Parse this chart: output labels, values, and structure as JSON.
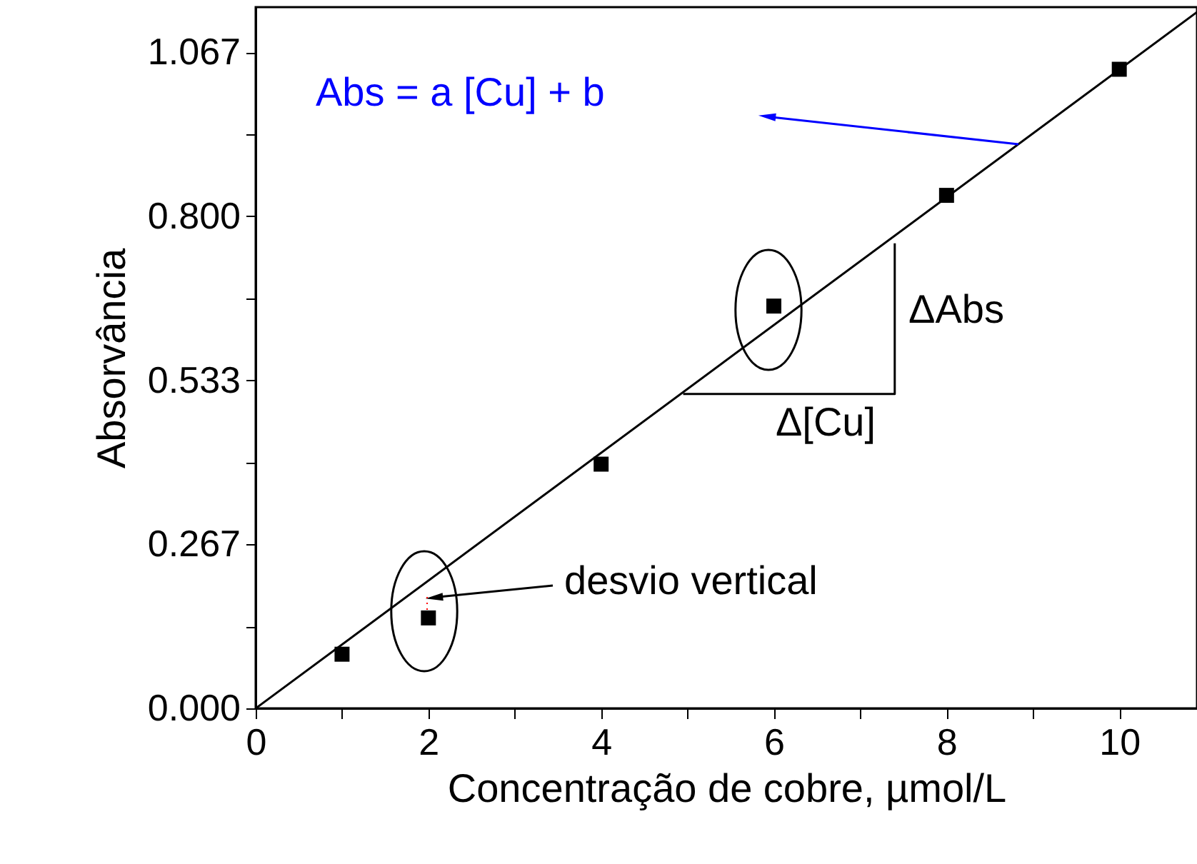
{
  "chart_data": {
    "type": "scatter",
    "xlabel": "Concentração de cobre, µmol/L",
    "ylabel": "Absorvância",
    "xlim": [
      0,
      10.9
    ],
    "ylim": [
      0,
      1.14
    ],
    "xticks": [
      0,
      {
        "value": 1,
        "label": null
      },
      2,
      {
        "value": 3,
        "label": null
      },
      4,
      {
        "value": 5,
        "label": null
      },
      6,
      {
        "value": 7,
        "label": null
      },
      8,
      {
        "value": 9,
        "label": null
      },
      10
    ],
    "yticks": [
      {
        "value": 0,
        "label": "0.000"
      },
      {
        "value": 0.1333,
        "label": null
      },
      {
        "value": 0.2667,
        "label": "0.267"
      },
      {
        "value": 0.4,
        "label": null
      },
      {
        "value": 0.5333,
        "label": "0.533"
      },
      {
        "value": 0.6667,
        "label": null
      },
      {
        "value": 0.8,
        "label": "0.800"
      },
      {
        "value": 0.9333,
        "label": null
      },
      {
        "value": 1.0667,
        "label": "1.067"
      }
    ],
    "grid": false,
    "marker": "square",
    "series": [
      {
        "color": "#000000",
        "x": [
          1,
          2,
          4,
          6,
          8,
          10
        ],
        "values": [
          0.088,
          0.147,
          0.397,
          0.654,
          0.834,
          1.039
        ]
      },
      {
        "type": "line",
        "color": "#000000",
        "line_style": "solid",
        "marker": "none",
        "x": [
          0,
          10.9
        ],
        "values": [
          0,
          1.132
        ]
      },
      {
        "type": "line",
        "color": "#000000",
        "line_style": "solid",
        "marker": "none",
        "x": [
          4.95,
          7.4,
          7.4
        ],
        "values": [
          0.511,
          0.511,
          0.756
        ]
      }
    ],
    "annotations": [
      "Abs = a [Cu] + b",
      "ΔAbs",
      "Δ[Cu]",
      "desvio vertical"
    ]
  }
}
